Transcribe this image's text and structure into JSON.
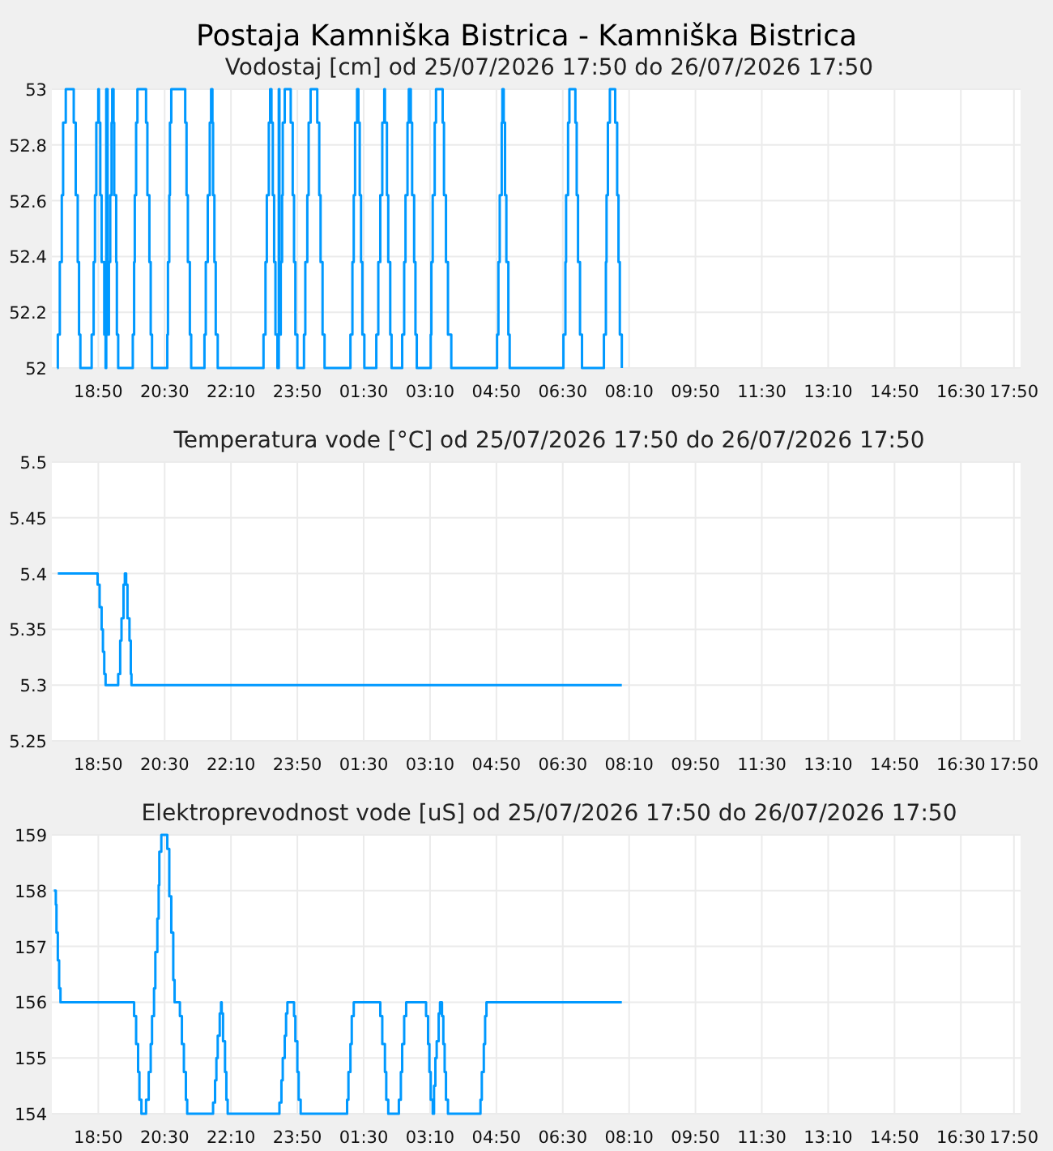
{
  "chart_data": [
    {
      "type": "step",
      "title": "Postaja Kamniška Bistrica - Kamniška Bistrica",
      "subtitle": "Vodostaj [cm] od 25/07/2026 17:50 do 26/07/2026 17:50",
      "color": "#0099ff",
      "grid": true,
      "x": [
        "2026-07-25T17:48",
        "2026-07-25T17:49",
        "2026-07-25T17:52",
        "2026-07-25T17:55",
        "2026-07-25T17:57",
        "2026-07-25T18:01",
        "2026-07-25T18:13",
        "2026-07-25T18:16",
        "2026-07-25T18:19",
        "2026-07-25T18:21",
        "2026-07-25T18:23",
        "2026-07-25T18:40",
        "2026-07-25T18:43",
        "2026-07-25T18:45",
        "2026-07-25T18:47",
        "2026-07-25T18:50",
        "2026-07-25T18:51",
        "2026-07-25T18:53",
        "2026-07-25T18:55",
        "2026-07-25T18:59",
        "2026-07-25T19:01",
        "2026-07-25T19:02",
        "2026-07-25T19:04",
        "2026-07-25T19:06",
        "2026-07-25T19:08",
        "2026-07-25T19:10",
        "2026-07-25T19:11",
        "2026-07-25T19:13",
        "2026-07-25T19:14",
        "2026-07-25T19:17",
        "2026-07-25T19:18",
        "2026-07-25T19:20",
        "2026-07-25T19:42",
        "2026-07-25T19:44",
        "2026-07-25T19:45",
        "2026-07-25T19:47",
        "2026-07-25T19:49",
        "2026-07-25T20:02",
        "2026-07-25T20:04",
        "2026-07-25T20:07",
        "2026-07-25T20:09",
        "2026-07-25T20:11",
        "2026-07-25T20:34",
        "2026-07-25T20:35",
        "2026-07-25T20:37",
        "2026-07-25T20:38",
        "2026-07-25T20:40",
        "2026-07-25T21:01",
        "2026-07-25T21:03",
        "2026-07-25T21:05",
        "2026-07-25T21:08",
        "2026-07-25T21:10",
        "2026-07-25T21:30",
        "2026-07-25T21:32",
        "2026-07-25T21:35",
        "2026-07-25T21:38",
        "2026-07-25T21:40",
        "2026-07-25T21:42",
        "2026-07-25T21:43",
        "2026-07-25T21:45",
        "2026-07-25T21:47",
        "2026-07-25T21:50",
        "2026-07-25T22:59",
        "2026-07-25T23:02",
        "2026-07-25T23:04",
        "2026-07-25T23:07",
        "2026-07-25T23:09",
        "2026-07-25T23:11",
        "2026-07-25T23:13",
        "2026-07-25T23:15",
        "2026-07-25T23:17",
        "2026-07-25T23:20",
        "2026-07-25T23:22",
        "2026-07-25T23:23",
        "2026-07-25T23:25",
        "2026-07-25T23:27",
        "2026-07-25T23:28",
        "2026-07-25T23:31",
        "2026-07-25T23:40",
        "2026-07-25T23:43",
        "2026-07-25T23:45",
        "2026-07-25T23:47",
        "2026-07-25T23:50",
        "2026-07-26T00:00",
        "2026-07-26T00:02",
        "2026-07-26T00:05",
        "2026-07-26T00:07",
        "2026-07-26T00:10",
        "2026-07-26T00:20",
        "2026-07-26T00:23",
        "2026-07-26T00:25",
        "2026-07-26T00:28",
        "2026-07-26T00:31",
        "2026-07-26T01:10",
        "2026-07-26T01:13",
        "2026-07-26T01:15",
        "2026-07-26T01:17",
        "2026-07-26T01:20",
        "2026-07-26T01:22",
        "2026-07-26T01:24",
        "2026-07-26T01:26",
        "2026-07-26T01:28",
        "2026-07-26T01:31",
        "2026-07-26T01:49",
        "2026-07-26T01:52",
        "2026-07-26T01:55",
        "2026-07-26T01:58",
        "2026-07-26T02:01",
        "2026-07-26T02:02",
        "2026-07-26T02:05",
        "2026-07-26T02:07",
        "2026-07-26T02:10",
        "2026-07-26T02:12",
        "2026-07-26T02:28",
        "2026-07-26T02:31",
        "2026-07-26T02:33",
        "2026-07-26T02:36",
        "2026-07-26T02:38",
        "2026-07-26T02:41",
        "2026-07-26T02:43",
        "2026-07-26T02:46",
        "2026-07-26T02:48",
        "2026-07-26T02:50",
        "2026-07-26T03:11",
        "2026-07-26T03:12",
        "2026-07-26T03:14",
        "2026-07-26T03:17",
        "2026-07-26T03:19",
        "2026-07-26T03:29",
        "2026-07-26T03:31",
        "2026-07-26T03:34",
        "2026-07-26T03:37",
        "2026-07-26T03:42",
        "2026-07-26T04:51",
        "2026-07-26T04:53",
        "2026-07-26T04:55",
        "2026-07-26T04:58",
        "2026-07-26T04:59",
        "2026-07-26T05:01",
        "2026-07-26T05:03",
        "2026-07-26T05:05",
        "2026-07-26T05:08",
        "2026-07-26T05:10",
        "2026-07-26T06:31",
        "2026-07-26T06:34",
        "2026-07-26T06:35",
        "2026-07-26T06:38",
        "2026-07-26T06:40",
        "2026-07-26T06:49",
        "2026-07-26T06:51",
        "2026-07-26T06:53",
        "2026-07-26T06:56",
        "2026-07-26T06:59",
        "2026-07-26T07:32",
        "2026-07-26T07:35",
        "2026-07-26T07:36",
        "2026-07-26T07:38",
        "2026-07-26T07:41",
        "2026-07-26T07:49",
        "2026-07-26T07:52",
        "2026-07-26T07:54",
        "2026-07-26T07:56",
        "2026-07-26T07:59"
      ],
      "values": [
        52,
        52.12,
        52.38,
        52.62,
        52.88,
        53,
        52.88,
        52.62,
        52.38,
        52.12,
        52,
        52.12,
        52.38,
        52.62,
        52.88,
        53,
        52.88,
        52.62,
        52.38,
        52.12,
        52,
        53,
        52.12,
        52.38,
        52.62,
        52.88,
        53,
        52.88,
        52.62,
        52.38,
        52.12,
        52,
        52.12,
        52.38,
        52.62,
        52.88,
        53,
        52.88,
        52.62,
        52.38,
        52.12,
        52,
        52.12,
        52.38,
        52.62,
        52.88,
        53,
        52.88,
        52.62,
        52.38,
        52.12,
        52,
        52.12,
        52.38,
        52.62,
        52.88,
        53,
        52.88,
        52.62,
        52.38,
        52.12,
        52,
        52.12,
        52.38,
        52.62,
        52.88,
        53,
        52.88,
        52.62,
        52.38,
        52.12,
        52,
        53,
        52.12,
        52.38,
        52.62,
        52.88,
        53,
        52.88,
        52.62,
        52.38,
        52.12,
        52,
        52.12,
        52.38,
        52.62,
        52.88,
        53,
        52.88,
        52.62,
        52.38,
        52.12,
        52,
        52.12,
        52.38,
        52.62,
        52.88,
        53,
        52.88,
        52.62,
        52.38,
        52.12,
        52,
        52.12,
        52.38,
        52.62,
        52.88,
        53,
        52.88,
        52.62,
        52.38,
        52.12,
        52,
        52.12,
        52.38,
        52.62,
        52.88,
        53,
        52.88,
        52.62,
        52.38,
        52.12,
        52,
        52.12,
        52.38,
        52.62,
        52.88,
        53,
        52.88,
        52.62,
        52.38,
        52.12,
        52,
        52.12,
        52.38,
        52.62,
        52.88,
        53,
        52.88,
        52.62,
        52.38,
        52.12,
        52,
        52.12,
        52.38,
        52.62,
        52.88,
        53,
        52.88,
        52.62,
        52.38,
        52.12,
        52,
        52.12,
        52.38,
        52.62,
        52.88,
        53,
        52.88,
        52.62,
        52.38,
        52.12,
        52
      ],
      "xlim": [
        "2026-07-25T17:40",
        "2026-07-26T18:00"
      ],
      "xticks": [
        {
          "value": "2026-07-25T18:50",
          "label": "18:50"
        },
        {
          "value": "2026-07-25T20:30",
          "label": "20:30"
        },
        {
          "value": "2026-07-25T22:10",
          "label": "22:10"
        },
        {
          "value": "2026-07-25T23:50",
          "label": "23:50"
        },
        {
          "value": "2026-07-26T01:30",
          "label": "01:30"
        },
        {
          "value": "2026-07-26T03:10",
          "label": "03:10"
        },
        {
          "value": "2026-07-26T04:50",
          "label": "04:50"
        },
        {
          "value": "2026-07-26T06:30",
          "label": "06:30"
        },
        {
          "value": "2026-07-26T08:10",
          "label": "08:10"
        },
        {
          "value": "2026-07-26T09:50",
          "label": "09:50"
        },
        {
          "value": "2026-07-26T11:30",
          "label": "11:30"
        },
        {
          "value": "2026-07-26T13:10",
          "label": "13:10"
        },
        {
          "value": "2026-07-26T14:50",
          "label": "14:50"
        },
        {
          "value": "2026-07-26T16:30",
          "label": "16:30"
        },
        {
          "value": "2026-07-26T17:50",
          "label": "17:50"
        }
      ],
      "ylim": [
        52,
        53
      ],
      "yticks": [
        52,
        52.2,
        52.4,
        52.6,
        52.8,
        53
      ]
    },
    {
      "type": "step",
      "title": "Temperatura vode [°C] od 25/07/2026 17:50 do 26/07/2026 17:50",
      "color": "#0099ff",
      "grid": true,
      "x": [
        "2026-07-25T17:49",
        "2026-07-25T18:49",
        "2026-07-25T18:52",
        "2026-07-25T18:55",
        "2026-07-25T18:57",
        "2026-07-25T18:59",
        "2026-07-25T19:01",
        "2026-07-25T19:20",
        "2026-07-25T19:23",
        "2026-07-25T19:25",
        "2026-07-25T19:28",
        "2026-07-25T19:30",
        "2026-07-25T19:32",
        "2026-07-25T19:34",
        "2026-07-25T19:37",
        "2026-07-25T19:39",
        "2026-07-25T19:40",
        "2026-07-26T07:59"
      ],
      "values": [
        5.4,
        5.39,
        5.37,
        5.35,
        5.33,
        5.31,
        5.3,
        5.31,
        5.34,
        5.36,
        5.39,
        5.4,
        5.39,
        5.36,
        5.34,
        5.31,
        5.3,
        5.3
      ],
      "xlim": [
        "2026-07-25T17:40",
        "2026-07-26T18:00"
      ],
      "xticks": [
        {
          "value": "2026-07-25T18:50",
          "label": "18:50"
        },
        {
          "value": "2026-07-25T20:30",
          "label": "20:30"
        },
        {
          "value": "2026-07-25T22:10",
          "label": "22:10"
        },
        {
          "value": "2026-07-25T23:50",
          "label": "23:50"
        },
        {
          "value": "2026-07-26T01:30",
          "label": "01:30"
        },
        {
          "value": "2026-07-26T03:10",
          "label": "03:10"
        },
        {
          "value": "2026-07-26T04:50",
          "label": "04:50"
        },
        {
          "value": "2026-07-26T06:30",
          "label": "06:30"
        },
        {
          "value": "2026-07-26T08:10",
          "label": "08:10"
        },
        {
          "value": "2026-07-26T09:50",
          "label": "09:50"
        },
        {
          "value": "2026-07-26T11:30",
          "label": "11:30"
        },
        {
          "value": "2026-07-26T13:10",
          "label": "13:10"
        },
        {
          "value": "2026-07-26T14:50",
          "label": "14:50"
        },
        {
          "value": "2026-07-26T16:30",
          "label": "16:30"
        },
        {
          "value": "2026-07-26T17:50",
          "label": "17:50"
        }
      ],
      "ylim": [
        5.25,
        5.5
      ],
      "yticks": [
        5.25,
        5.3,
        5.35,
        5.4,
        5.45,
        5.5
      ]
    },
    {
      "type": "step",
      "title": "Elektroprevodnost vode [uS] od 25/07/2026 17:50 do 26/07/2026 17:50",
      "color": "#0099ff",
      "grid": true,
      "x": [
        "2026-07-25T17:43",
        "2026-07-25T17:46",
        "2026-07-25T17:47",
        "2026-07-25T17:49",
        "2026-07-25T17:51",
        "2026-07-25T17:53",
        "2026-07-25T19:44",
        "2026-07-25T19:47",
        "2026-07-25T19:50",
        "2026-07-25T19:52",
        "2026-07-25T19:55",
        "2026-07-25T20:02",
        "2026-07-25T20:06",
        "2026-07-25T20:09",
        "2026-07-25T20:11",
        "2026-07-25T20:14",
        "2026-07-25T20:16",
        "2026-07-25T20:19",
        "2026-07-25T20:21",
        "2026-07-25T20:22",
        "2026-07-25T20:25",
        "2026-07-25T20:34",
        "2026-07-25T20:37",
        "2026-07-25T20:40",
        "2026-07-25T20:43",
        "2026-07-25T20:45",
        "2026-07-25T20:53",
        "2026-07-25T20:56",
        "2026-07-25T20:59",
        "2026-07-25T21:02",
        "2026-07-25T21:04",
        "2026-07-25T21:43",
        "2026-07-25T21:46",
        "2026-07-25T21:48",
        "2026-07-25T21:50",
        "2026-07-25T21:53",
        "2026-07-25T21:55",
        "2026-07-25T21:56",
        "2026-07-25T21:58",
        "2026-07-25T22:01",
        "2026-07-25T22:03",
        "2026-07-25T22:05",
        "2026-07-25T23:23",
        "2026-07-25T23:26",
        "2026-07-25T23:28",
        "2026-07-25T23:31",
        "2026-07-25T23:33",
        "2026-07-25T23:35",
        "2026-07-25T23:45",
        "2026-07-25T23:47",
        "2026-07-25T23:50",
        "2026-07-25T23:52",
        "2026-07-25T23:55",
        "2026-07-26T01:05",
        "2026-07-26T01:07",
        "2026-07-26T01:10",
        "2026-07-26T01:12",
        "2026-07-26T01:15",
        "2026-07-26T01:55",
        "2026-07-26T01:58",
        "2026-07-26T02:02",
        "2026-07-26T02:04",
        "2026-07-26T02:07",
        "2026-07-26T02:23",
        "2026-07-26T02:26",
        "2026-07-26T02:28",
        "2026-07-26T02:31",
        "2026-07-26T02:34",
        "2026-07-26T03:04",
        "2026-07-26T03:07",
        "2026-07-26T03:09",
        "2026-07-26T03:11",
        "2026-07-26T03:14",
        "2026-07-26T03:16",
        "2026-07-26T03:18",
        "2026-07-26T03:20",
        "2026-07-26T03:23",
        "2026-07-26T03:25",
        "2026-07-26T03:28",
        "2026-07-26T03:30",
        "2026-07-26T03:32",
        "2026-07-26T03:34",
        "2026-07-26T03:37",
        "2026-07-26T04:26",
        "2026-07-26T04:28",
        "2026-07-26T04:31",
        "2026-07-26T04:33",
        "2026-07-26T04:35",
        "2026-07-26T07:59"
      ],
      "values": [
        158,
        157.75,
        157.25,
        156.75,
        156.25,
        156,
        155.75,
        155.25,
        154.75,
        154.25,
        154,
        154.25,
        154.75,
        155.25,
        155.75,
        156.25,
        156.9,
        157.5,
        158.1,
        158.7,
        159,
        158.75,
        157.9,
        157.25,
        156.4,
        156,
        155.75,
        155.25,
        154.75,
        154.25,
        154,
        154.2,
        154.6,
        155,
        155.4,
        155.8,
        156,
        155.8,
        155.3,
        154.75,
        154.25,
        154,
        154.2,
        154.6,
        155,
        155.4,
        155.8,
        156,
        155.75,
        155.3,
        154.75,
        154.25,
        154,
        154.25,
        154.75,
        155.25,
        155.75,
        156,
        155.75,
        155.25,
        154.75,
        154.25,
        154,
        154.25,
        154.75,
        155.25,
        155.75,
        156,
        155.75,
        155.25,
        154.75,
        154.25,
        154,
        154.5,
        155,
        155.3,
        155.8,
        156,
        155.75,
        155.25,
        154.75,
        154.25,
        154,
        154.25,
        154.75,
        155.25,
        155.75,
        156,
        156
      ],
      "xlim": [
        "2026-07-25T17:40",
        "2026-07-26T18:00"
      ],
      "xticks": [
        {
          "value": "2026-07-25T18:50",
          "label": "18:50"
        },
        {
          "value": "2026-07-25T20:30",
          "label": "20:30"
        },
        {
          "value": "2026-07-25T22:10",
          "label": "22:10"
        },
        {
          "value": "2026-07-25T23:50",
          "label": "23:50"
        },
        {
          "value": "2026-07-26T01:30",
          "label": "01:30"
        },
        {
          "value": "2026-07-26T03:10",
          "label": "03:10"
        },
        {
          "value": "2026-07-26T04:50",
          "label": "04:50"
        },
        {
          "value": "2026-07-26T06:30",
          "label": "06:30"
        },
        {
          "value": "2026-07-26T08:10",
          "label": "08:10"
        },
        {
          "value": "2026-07-26T09:50",
          "label": "09:50"
        },
        {
          "value": "2026-07-26T11:30",
          "label": "11:30"
        },
        {
          "value": "2026-07-26T13:10",
          "label": "13:10"
        },
        {
          "value": "2026-07-26T14:50",
          "label": "14:50"
        },
        {
          "value": "2026-07-26T16:30",
          "label": "16:30"
        },
        {
          "value": "2026-07-26T17:50",
          "label": "17:50"
        }
      ],
      "ylim": [
        154,
        159
      ],
      "yticks": [
        154,
        155,
        156,
        157,
        158,
        159
      ]
    }
  ]
}
